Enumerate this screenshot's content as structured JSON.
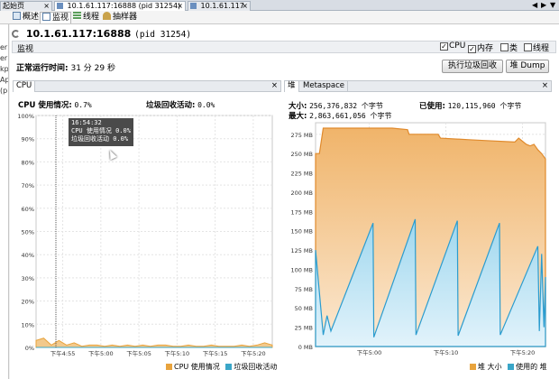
{
  "tabs": [
    {
      "label": "起始页",
      "active": false
    },
    {
      "label": "10.1.61.117:16888 (pid 31254)",
      "active": true
    },
    {
      "label": "10.1.61.117",
      "active": false
    }
  ],
  "subtabs": [
    {
      "label": "概述",
      "icon": "overview-icon"
    },
    {
      "label": "监视",
      "icon": "monitor-icon"
    },
    {
      "label": "线程",
      "icon": "threads-icon"
    },
    {
      "label": "抽样器",
      "icon": "sampler-icon"
    }
  ],
  "left_edge_fragments": [
    "er",
    "er",
    "kp",
    "Ap",
    "(p"
  ],
  "header": {
    "host": "10.1.61.117:16888",
    "pid": "(pid 31254)"
  },
  "section": {
    "title": "监视",
    "checkboxes": [
      {
        "label": "CPU",
        "checked": true
      },
      {
        "label": "内存",
        "checked": true
      },
      {
        "label": "类",
        "checked": false
      },
      {
        "label": "线程",
        "checked": false
      }
    ]
  },
  "uptime": {
    "label": "正常运行时间:",
    "value": "31 分 29 秒"
  },
  "buttons": {
    "gc": "执行垃圾回收",
    "heap_dump": "堆 Dump"
  },
  "cpu_panel": {
    "tab": "CPU",
    "cpu_usage_label": "CPU 使用情况:",
    "cpu_usage_value": "0.7%",
    "gc_activity_label": "垃圾回收活动:",
    "gc_activity_value": "0.0%",
    "tooltip": {
      "time": "16:54:32",
      "line1": "CPU 使用情况  0.0%",
      "line2": "垃圾回收活动  0.0%"
    },
    "legend": [
      {
        "label": "CPU 使用情况",
        "color": "#e8a33d"
      },
      {
        "label": "垃圾回收活动",
        "color": "#3aa6c8"
      }
    ]
  },
  "heap_panel": {
    "tabs": [
      "堆",
      "Metaspace"
    ],
    "size_label": "大小:",
    "size_value": "256,376,832 个字节",
    "max_label": "最大:",
    "max_value": "2,863,661,056 个字节",
    "used_label": "已使用:",
    "used_value": "120,115,960 个字节",
    "legend": [
      {
        "label": "堆 大小",
        "color": "#e8a33d"
      },
      {
        "label": "使用的 堆",
        "color": "#3aa6c8"
      }
    ]
  },
  "chart_data": [
    {
      "type": "area",
      "title": "CPU",
      "x_ticks": [
        "下午4:55",
        "下午5:00",
        "下午5:05",
        "下午5:10",
        "下午5:15",
        "下午5:20"
      ],
      "y_ticks": [
        "0%",
        "10%",
        "20%",
        "30%",
        "40%",
        "50%",
        "60%",
        "70%",
        "80%",
        "90%",
        "100%"
      ],
      "ylim": [
        0,
        100
      ],
      "x_minutes": [
        0,
        1,
        2,
        3,
        4,
        5,
        6,
        7,
        8,
        9,
        10,
        11,
        12,
        13,
        14,
        15,
        16,
        17,
        18,
        19,
        20,
        21,
        22,
        23,
        24,
        25,
        26,
        27,
        28,
        29,
        30,
        31
      ],
      "series": [
        {
          "name": "CPU 使用情况",
          "values": [
            3,
            4,
            1,
            3,
            1,
            2,
            0.5,
            1,
            1,
            0.5,
            1,
            0.5,
            1,
            0.5,
            1,
            0.5,
            1,
            1,
            0.5,
            0.5,
            1,
            0.5,
            0.5,
            1,
            0.5,
            0.5,
            0.5,
            1,
            0.5,
            1,
            2,
            1
          ]
        },
        {
          "name": "垃圾回收活动",
          "values": [
            0,
            0,
            0,
            0,
            0,
            0,
            0,
            0,
            0,
            0,
            0,
            0,
            0,
            0,
            0,
            0,
            0,
            0,
            0,
            0,
            0,
            0,
            0,
            0,
            0,
            0,
            0,
            0,
            0,
            0,
            0,
            0
          ]
        }
      ],
      "grid": true
    },
    {
      "type": "area",
      "title": "堆",
      "x_ticks": [
        "下午5:00",
        "下午5:10",
        "下午5:20"
      ],
      "y_ticks": [
        "0 MB",
        "25 MB",
        "50 MB",
        "75 MB",
        "100 MB",
        "125 MB",
        "150 MB",
        "175 MB",
        "200 MB",
        "225 MB",
        "250 MB",
        "275 MB"
      ],
      "ylim": [
        0,
        290
      ],
      "series": [
        {
          "name": "堆 大小",
          "x_minutes": [
            0,
            0.5,
            1,
            10,
            12,
            12.2,
            16,
            16.3,
            20,
            22,
            26,
            26.5,
            27.5,
            28,
            28.5,
            29,
            29.5,
            30
          ],
          "values": [
            250,
            250,
            283,
            283,
            281,
            275,
            275,
            270,
            268,
            267,
            265,
            270,
            262,
            260,
            262,
            255,
            250,
            243
          ]
        },
        {
          "name": "使用的 堆",
          "x_minutes": [
            0,
            1,
            1.5,
            2,
            7.5,
            7.6,
            13,
            13.1,
            18.5,
            18.6,
            24,
            24.1,
            29,
            29.2,
            29.5,
            29.8,
            30
          ],
          "values": [
            125,
            15,
            40,
            20,
            160,
            12,
            165,
            15,
            163,
            14,
            160,
            15,
            130,
            20,
            120,
            25,
            90
          ]
        }
      ],
      "grid": true
    }
  ]
}
